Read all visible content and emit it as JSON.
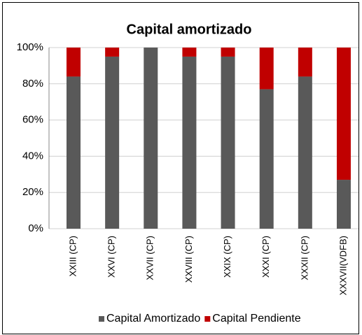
{
  "chart_data": {
    "type": "stacked_bar",
    "title": "Capital amortizado",
    "categories": [
      "XXIII (CP)",
      "XXVI (CP)",
      "XXVII (CP)",
      "XXVIII (CP)",
      "XXIX (CP)",
      "XXXI (CP)",
      "XXXII (CP)",
      "XXXVII(VDFB)"
    ],
    "series": [
      {
        "name": "Capital Amortizado",
        "color": "#595959",
        "values": [
          84,
          95,
          100,
          95,
          95,
          77,
          84,
          27
        ]
      },
      {
        "name": "Capital Pendiente",
        "color": "#c00000",
        "values": [
          16,
          5,
          0,
          5,
          5,
          23,
          16,
          73
        ]
      }
    ],
    "ylim": [
      0,
      100
    ],
    "yticks": [
      {
        "value": 0,
        "label": "0%"
      },
      {
        "value": 20,
        "label": "20%"
      },
      {
        "value": 40,
        "label": "40%"
      },
      {
        "value": 60,
        "label": "60%"
      },
      {
        "value": 80,
        "label": "80%"
      },
      {
        "value": 100,
        "label": "100%"
      }
    ],
    "grid": true,
    "legend": "bottom"
  }
}
